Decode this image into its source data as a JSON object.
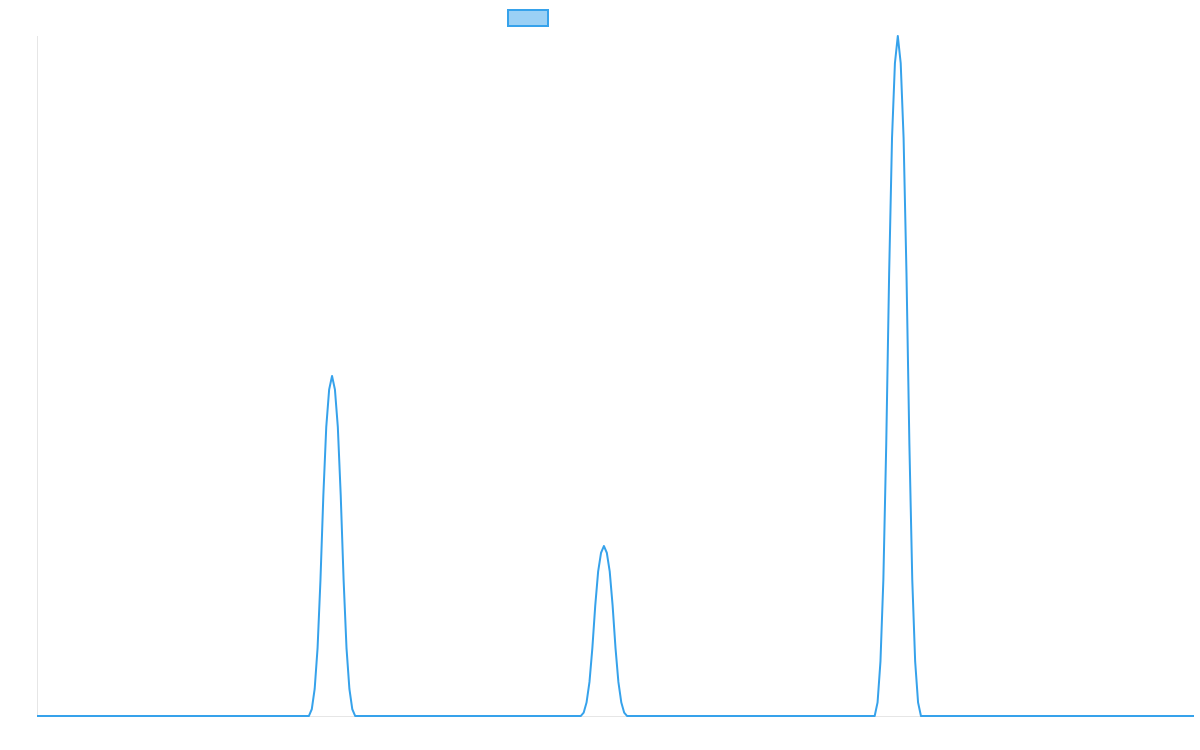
{
  "chart_data": {
    "type": "line",
    "color": "#36a2eb",
    "xlim": [
      0,
      100
    ],
    "ylim": [
      0,
      1
    ],
    "x": [
      0,
      23.5,
      23.75,
      24,
      24.25,
      24.5,
      24.75,
      25,
      25.25,
      25.5,
      25.75,
      26,
      26.25,
      26.5,
      26.75,
      27,
      27.25,
      27.5,
      47,
      47.25,
      47.5,
      47.75,
      48,
      48.25,
      48.5,
      48.75,
      49,
      49.25,
      49.5,
      49.75,
      50,
      50.25,
      50.5,
      50.75,
      51,
      72.4,
      72.65,
      72.9,
      73.15,
      73.4,
      73.65,
      73.9,
      74.15,
      74.4,
      74.65,
      74.9,
      75.15,
      75.4,
      75.65,
      75.9,
      76.15,
      76.4,
      100
    ],
    "values": [
      0,
      0,
      0.01,
      0.04,
      0.1,
      0.2,
      0.325,
      0.425,
      0.48,
      0.5,
      0.48,
      0.425,
      0.325,
      0.2,
      0.1,
      0.04,
      0.01,
      0,
      0,
      0.005,
      0.02,
      0.05,
      0.1,
      0.1625,
      0.2125,
      0.24,
      0.25,
      0.24,
      0.2125,
      0.1625,
      0.1,
      0.05,
      0.02,
      0.005,
      0,
      0,
      0.02,
      0.08,
      0.2,
      0.4,
      0.65,
      0.85,
      0.96,
      1,
      0.96,
      0.85,
      0.65,
      0.4,
      0.2,
      0.08,
      0.02,
      0,
      0
    ]
  }
}
